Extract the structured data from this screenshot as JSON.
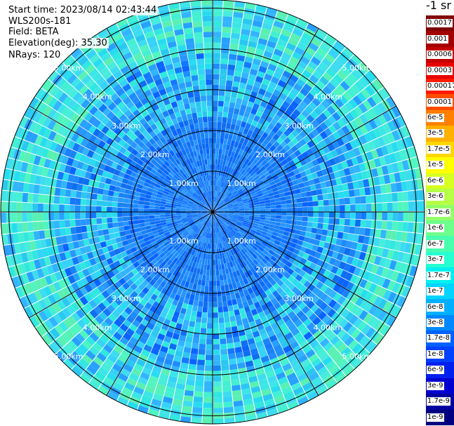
{
  "header": {
    "start_time": "Start time: 2023/08/14 02:43:44",
    "instrument": "WLS200s-181",
    "field": "Field: BETA",
    "elevation": "Elevation(deg): 35.30",
    "nrays": "NRays: 120"
  },
  "colorbar": {
    "units": "-1 sr",
    "labels": [
      "0.0017",
      "0.001",
      "0.0006",
      "0.0003",
      "0.00017",
      "0.0001",
      "6e-5",
      "3e-5",
      "1.7e-5",
      "1e-5",
      "6e-6",
      "3e-6",
      "1.7e-6",
      "1e-6",
      "6e-7",
      "3e-7",
      "1.7e-7",
      "1e-7",
      "6e-8",
      "3e-8",
      "1.7e-8",
      "1e-8",
      "6e-9",
      "3e-9",
      "1.7e-9",
      "1e-9"
    ],
    "colors": [
      "#7f0000",
      "#a30000",
      "#c40000",
      "#e60000",
      "#ff1a00",
      "#ff4d00",
      "#ff8000",
      "#ffb000",
      "#ffd700",
      "#ffff00",
      "#d8ff22",
      "#b6ff46",
      "#92ff69",
      "#6dff8b",
      "#48ffae",
      "#26ffd0",
      "#00f0f0",
      "#00d4ff",
      "#00b0ff",
      "#0088ff",
      "#0060ff",
      "#0040ff",
      "#0020ee",
      "#0000d0",
      "#0000a0",
      "#000080"
    ]
  },
  "chart_data": {
    "type": "heatmap",
    "projection": "polar-ppi",
    "n_rays": 120,
    "range_rings_km": [
      1.0,
      2.0,
      3.0,
      4.0,
      5.0
    ],
    "ring_labels": [
      "1.00km",
      "2.00km",
      "3.00km",
      "4.00km",
      "5.00km"
    ],
    "max_range_km": 5.2,
    "spoke_angles_deg": [
      0,
      30,
      60,
      90,
      120,
      150,
      180,
      210,
      240,
      270,
      300,
      330
    ],
    "field": "BETA",
    "elevation_deg": 35.3,
    "colorscale": "jet, logarithmic 1e-9 to 0.0017 sr^-1"
  }
}
